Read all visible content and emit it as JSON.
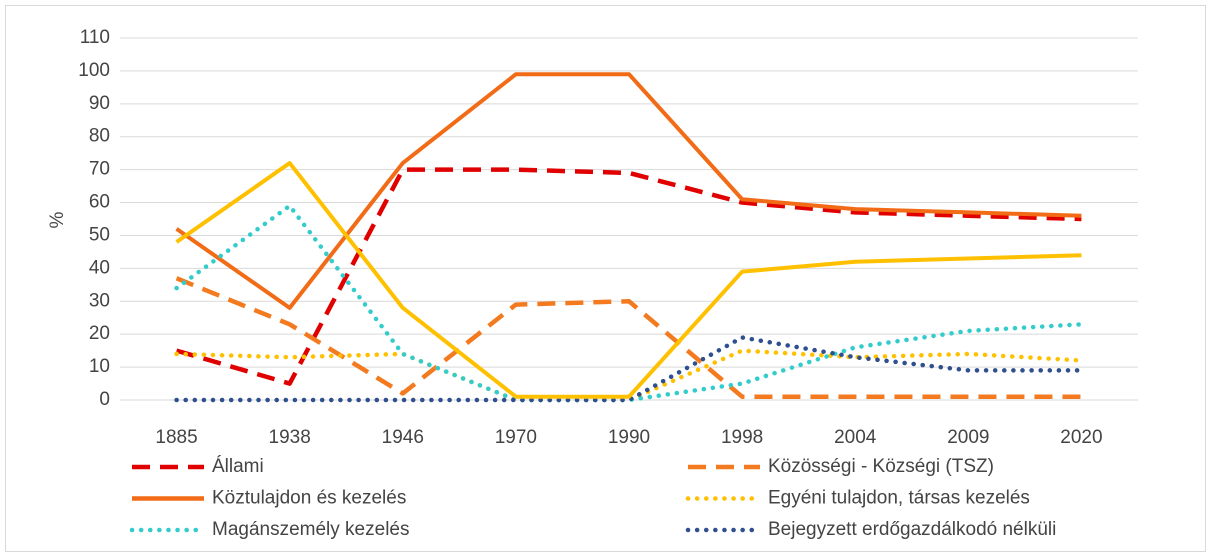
{
  "chart_data": {
    "type": "line",
    "y_label": "%",
    "categories": [
      "1885",
      "1938",
      "1946",
      "1970",
      "1990",
      "1998",
      "2004",
      "2009",
      "2020"
    ],
    "ylim": [
      0,
      110
    ],
    "yticks": [
      0,
      10,
      20,
      30,
      40,
      50,
      60,
      70,
      80,
      90,
      100,
      110
    ],
    "grid": true,
    "series": [
      {
        "name": "Állami",
        "color": "#e00000",
        "style": "dashed",
        "values": [
          15,
          5,
          70,
          70,
          69,
          60,
          57,
          56,
          55
        ]
      },
      {
        "name": "Közösségi - Községi (TSZ)",
        "color": "#f47a20",
        "style": "dashed",
        "values": [
          37,
          23,
          2,
          29,
          30,
          1,
          1,
          1,
          1
        ]
      },
      {
        "name": "Köztulajdon és kezelés",
        "color": "#f26b16",
        "style": "solid",
        "values": [
          52,
          28,
          72,
          99,
          99,
          61,
          58,
          57,
          56
        ]
      },
      {
        "name": "Egyéni tulajdon, társas kezelés",
        "color": "#ffc000",
        "style": "dotted",
        "values": [
          14,
          13,
          14,
          0,
          0,
          15,
          13,
          14,
          12
        ]
      },
      {
        "name": "Magánszemély kezelés",
        "color": "#33cccc",
        "style": "dotted",
        "values": [
          34,
          59,
          14,
          0,
          0,
          5,
          16,
          21,
          23
        ]
      },
      {
        "name": "Bejegyzett erdőgazdálkodó nélküli",
        "color": "#2f4f8f",
        "style": "dotted",
        "values": [
          0,
          0,
          0,
          0,
          0,
          19,
          13,
          9,
          9
        ]
      },
      {
        "color": "#ffc000",
        "style": "solid",
        "values": [
          48,
          72,
          28,
          1,
          1,
          39,
          42,
          43,
          44
        ]
      }
    ]
  }
}
